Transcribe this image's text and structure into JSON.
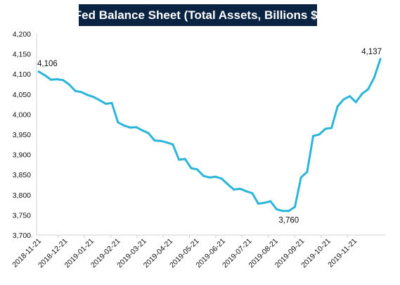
{
  "title": "Fed Balance Sheet (Total Assets, Billions $)",
  "colors": {
    "line": "#2bb5d8",
    "title_bg": "#0b2342",
    "title_text": "#ffffff"
  },
  "chart_data": {
    "type": "line",
    "title": "Fed Balance Sheet (Total Assets, Billions $)",
    "xlabel": "",
    "ylabel": "",
    "ylim": [
      3700,
      4200
    ],
    "yticks": [
      3700,
      3750,
      3800,
      3850,
      3900,
      3950,
      4000,
      4050,
      4100,
      4150,
      4200
    ],
    "ytick_labels": [
      "3,700",
      "3,750",
      "3,800",
      "3,850",
      "3,900",
      "3,950",
      "4,000",
      "4,050",
      "4,100",
      "4,150",
      "4,200"
    ],
    "xtick_labels": [
      "2018-11-21",
      "2018-12-21",
      "2019-01-21",
      "2019-02-21",
      "2019-03-21",
      "2019-04-21",
      "2019-05-21",
      "2019-06-21",
      "2019-07-21",
      "2019-08-21",
      "2019-09-21",
      "2019-10-21",
      "2019-11-21"
    ],
    "grid": false,
    "legend": "none",
    "series": [
      {
        "values": [
          4106,
          4097,
          4086,
          4087,
          4085,
          4074,
          4058,
          4055,
          4048,
          4043,
          4035,
          4026,
          4028,
          3980,
          3972,
          3967,
          3968,
          3960,
          3953,
          3935,
          3934,
          3930,
          3925,
          3887,
          3889,
          3866,
          3863,
          3847,
          3843,
          3845,
          3840,
          3826,
          3813,
          3815,
          3809,
          3804,
          3778,
          3780,
          3784,
          3764,
          3760,
          3760,
          3770,
          3843,
          3857,
          3946,
          3950,
          3964,
          3966,
          4020,
          4037,
          4045,
          4030,
          4051,
          4062,
          4091,
          4137
        ]
      }
    ],
    "annotations": [
      {
        "text": "4,106",
        "index": 0
      },
      {
        "text": "3,760",
        "index": 41
      },
      {
        "text": "4,137",
        "index": 56
      }
    ]
  }
}
